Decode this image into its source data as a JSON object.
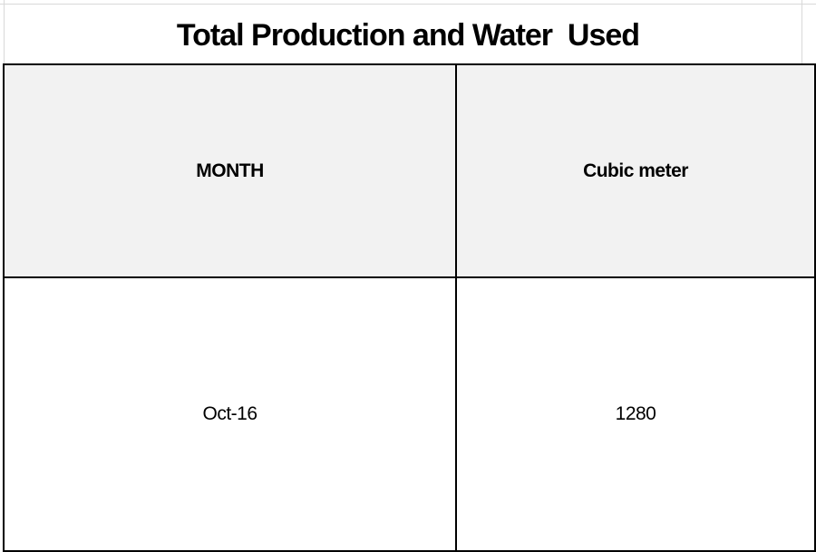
{
  "title": "Total Production and Water  Used",
  "table": {
    "headers": [
      "MONTH",
      "Cubic meter"
    ],
    "rows": [
      [
        "Oct-16",
        "1280"
      ]
    ]
  },
  "colors": {
    "header_fill": "#f2f2f2",
    "border": "#000000",
    "gridline": "#d9d9d9"
  }
}
